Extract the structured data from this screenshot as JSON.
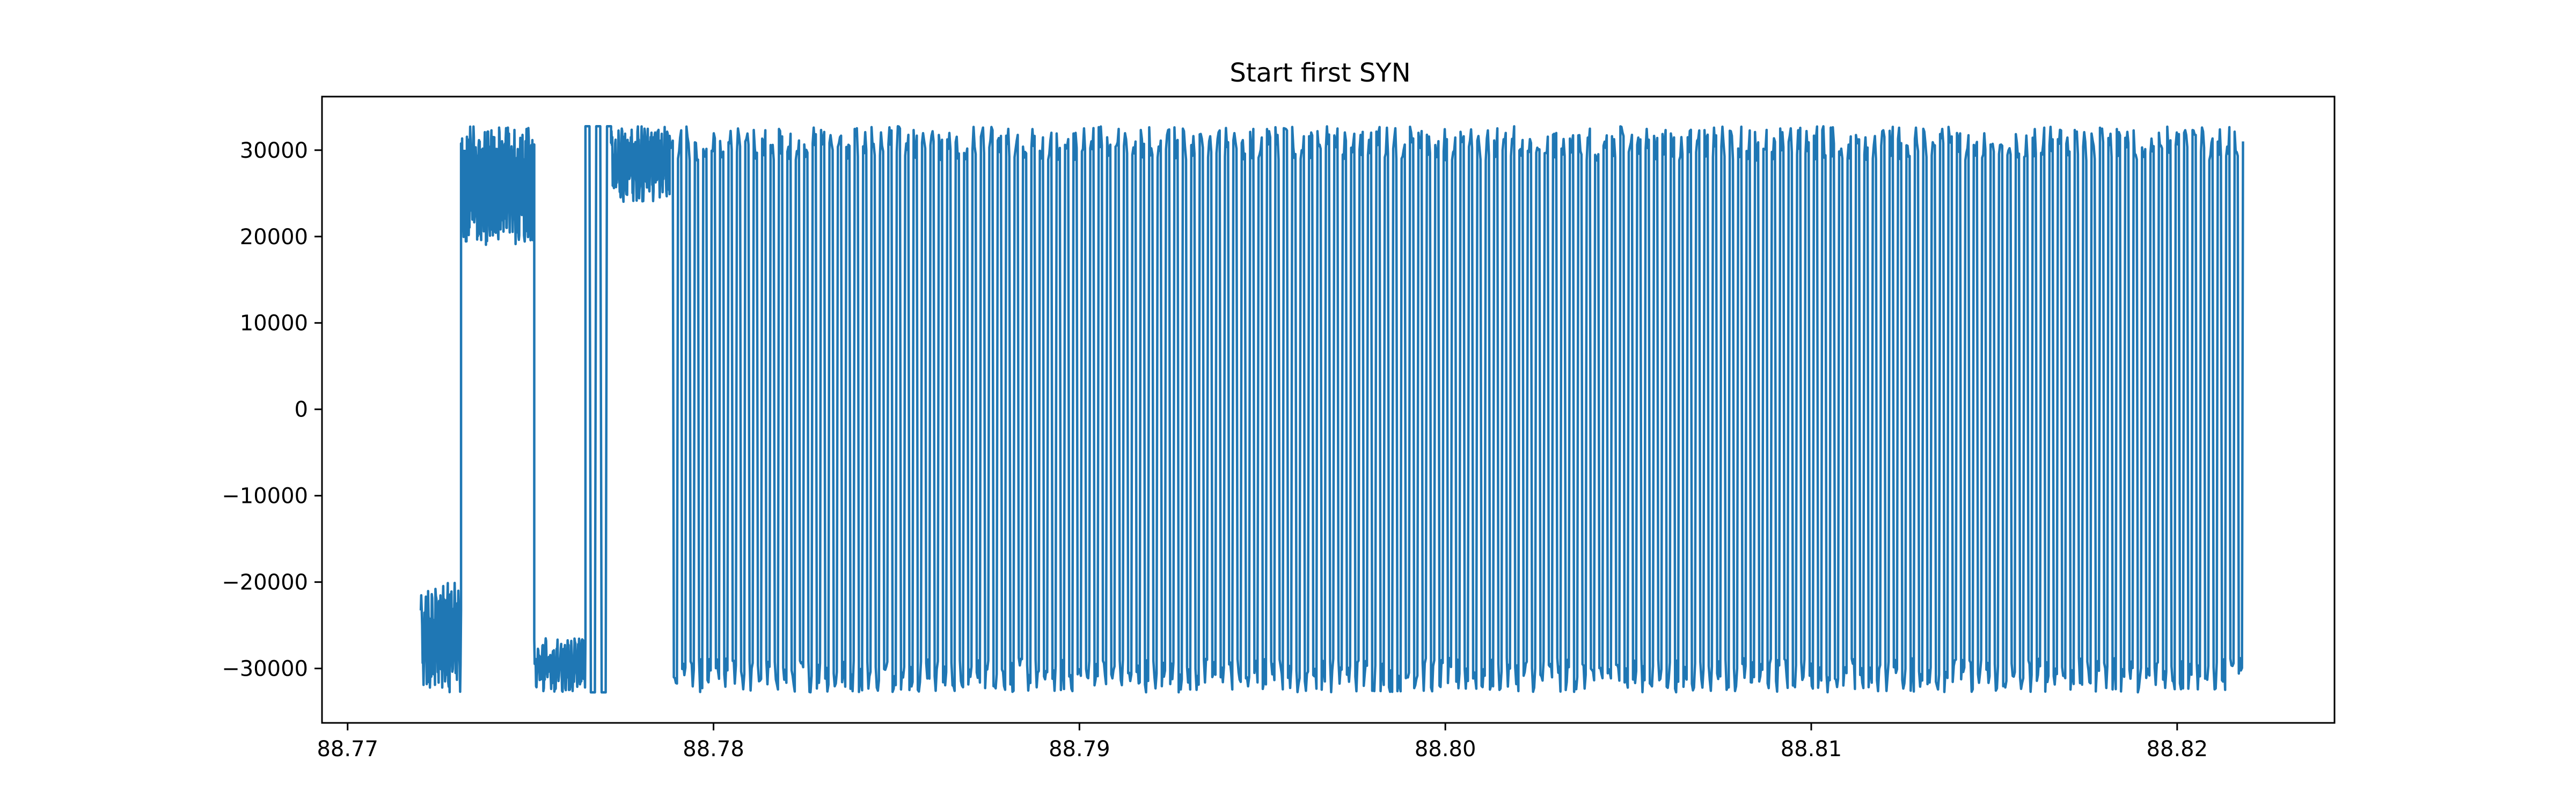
{
  "chart_data": {
    "type": "line",
    "title": "Start first SYN",
    "xlabel": "",
    "ylabel": "",
    "xlim": [
      88.7693,
      88.8243
    ],
    "ylim": [
      -36300,
      36200
    ],
    "grid": false,
    "legend": "none",
    "colors": {
      "series": "#1f77b4",
      "axes": "#000000",
      "background": "#ffffff"
    },
    "x_ticks": [
      {
        "value": 88.77,
        "label": "88.77"
      },
      {
        "value": 88.78,
        "label": "88.78"
      },
      {
        "value": 88.79,
        "label": "88.79"
      },
      {
        "value": 88.8,
        "label": "88.80"
      },
      {
        "value": 88.81,
        "label": "88.81"
      },
      {
        "value": 88.82,
        "label": "88.82"
      }
    ],
    "y_ticks": [
      {
        "value": 30000,
        "label": "30000"
      },
      {
        "value": 20000,
        "label": "20000"
      },
      {
        "value": 10000,
        "label": "10000"
      },
      {
        "value": 0,
        "label": "0"
      },
      {
        "value": -10000,
        "label": "−10000"
      },
      {
        "value": -20000,
        "label": "−20000"
      },
      {
        "value": -30000,
        "label": "−30000"
      }
    ],
    "series": [
      {
        "x_start": 88.772,
        "x_end": 88.8218,
        "segments": [
          {
            "x0": 88.772,
            "x1": 88.7731,
            "period": 0.0001,
            "lo": -32768,
            "hi": -20000,
            "jitter": 5000
          },
          {
            "x0": 88.7731,
            "x1": 88.7751,
            "period": 8e-05,
            "lo": 19000,
            "hi": 32767,
            "jitter": 5000
          },
          {
            "x0": 88.7751,
            "x1": 88.7765,
            "period": 0.0001,
            "lo": -32768,
            "hi": -26500,
            "jitter": 3000
          },
          {
            "x0": 88.7765,
            "x1": 88.7772,
            "period": 0.0003,
            "lo": -32768,
            "hi": 32767,
            "jitter": 0
          },
          {
            "x0": 88.7772,
            "x1": 88.7788,
            "period": 9e-05,
            "lo": 24000,
            "hi": 32767,
            "jitter": 4000
          },
          {
            "x0": 88.7788,
            "x1": 88.8218,
            "period": 0.00023,
            "lo": -32768,
            "hi": 32767,
            "jitter": 4000
          }
        ]
      }
    ]
  }
}
